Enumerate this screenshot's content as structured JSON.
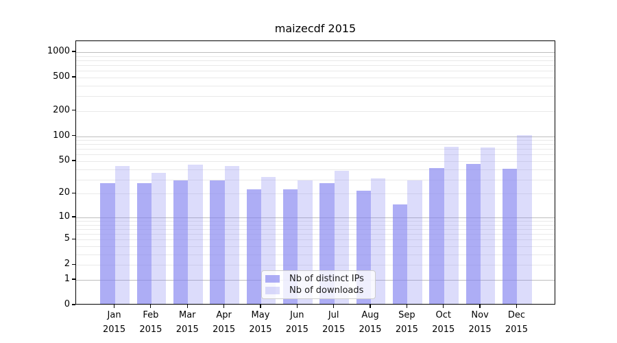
{
  "chart_data": {
    "type": "bar",
    "title": "maizecdf 2015",
    "scale": "log1p",
    "grid": true,
    "legend_position": "lower center",
    "ylim": [
      0,
      1350
    ],
    "y_ticks": [
      1000,
      500,
      200,
      100,
      50,
      20,
      10,
      5,
      2,
      1,
      0
    ],
    "categories": [
      {
        "month": "Jan",
        "year": "2015"
      },
      {
        "month": "Feb",
        "year": "2015"
      },
      {
        "month": "Mar",
        "year": "2015"
      },
      {
        "month": "Apr",
        "year": "2015"
      },
      {
        "month": "May",
        "year": "2015"
      },
      {
        "month": "Jun",
        "year": "2015"
      },
      {
        "month": "Jul",
        "year": "2015"
      },
      {
        "month": "Aug",
        "year": "2015"
      },
      {
        "month": "Sep",
        "year": "2015"
      },
      {
        "month": "Oct",
        "year": "2015"
      },
      {
        "month": "Nov",
        "year": "2015"
      },
      {
        "month": "Dec",
        "year": "2015"
      }
    ],
    "series": [
      {
        "key": "distinct-ips",
        "name": "Nb of distinct IPs",
        "color": "#8282F0",
        "alpha": 0.66,
        "values": [
          26,
          26,
          28,
          28,
          22,
          22,
          26,
          21,
          14,
          40,
          45,
          39
        ]
      },
      {
        "key": "downloads",
        "name": "Nb of downloads",
        "color": "#8282F0",
        "alpha": 0.28,
        "values": [
          42,
          35,
          44,
          42,
          31,
          28,
          37,
          30,
          28,
          72,
          70,
          100
        ]
      }
    ],
    "colors": {
      "bar_dark_rendered": "#acacf5",
      "bar_light_rendered": "#dcdcfb",
      "gridline_major": "#bdbdbd",
      "gridline_minor": "#e9e9e9",
      "axis": "#000000",
      "background": "#ffffff"
    }
  }
}
